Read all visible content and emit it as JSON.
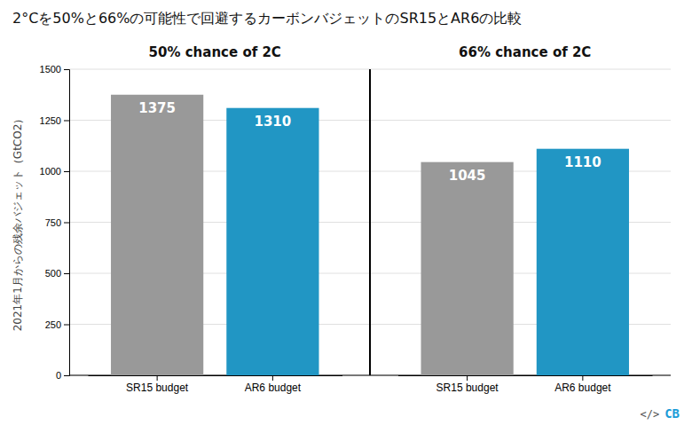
{
  "chart_data": {
    "type": "bar",
    "title": "2°Cを50%と66%の可能性で回避するカーボンバジェットのSR15とAR6の比較",
    "y_label": "2021年1月からの残余バジェット（GtCO2）",
    "categories": [
      "SR15 budget",
      "AR6 budget",
      "SR15 budget",
      "AR6 budget"
    ],
    "values": [
      1375,
      1310,
      1045,
      1110
    ],
    "colors": [
      "#999999",
      "#2196c4",
      "#999999",
      "#2196c4"
    ],
    "annotations": [
      "50% chance of 2C",
      "66% chance of 2C"
    ],
    "credit": [
      "</>",
      "CB"
    ],
    "ylim": [
      0,
      1500
    ],
    "yticks": [
      0,
      250,
      500,
      750,
      1000,
      1250,
      1500
    ],
    "grid": true,
    "data_labels": true
  }
}
